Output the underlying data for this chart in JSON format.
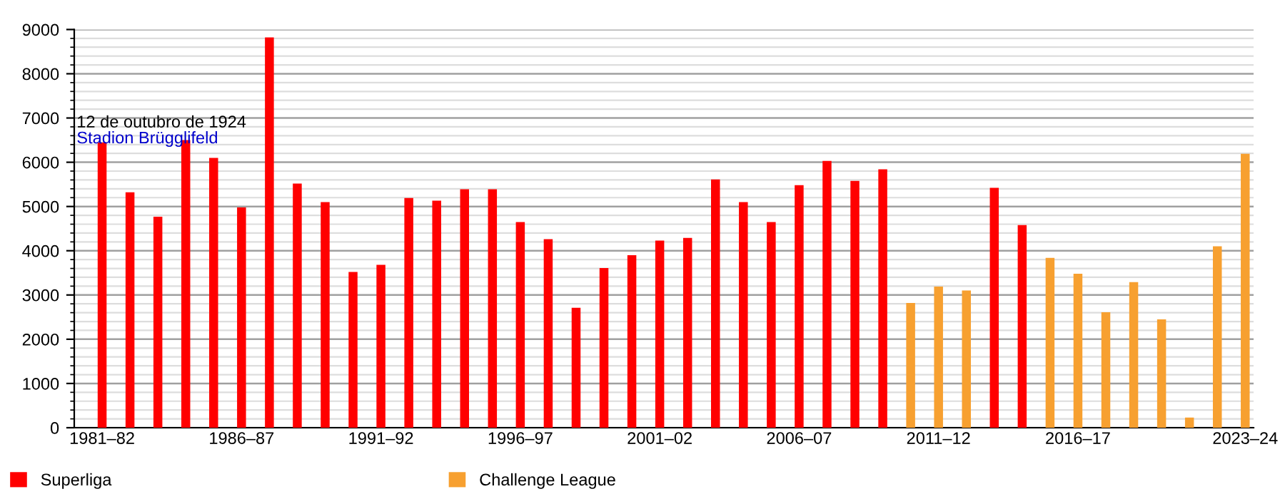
{
  "chart_data": {
    "type": "bar",
    "categories": [
      "1981–82",
      null,
      null,
      null,
      null,
      "1986–87",
      null,
      null,
      null,
      null,
      "1991–92",
      null,
      null,
      null,
      null,
      "1996–97",
      null,
      null,
      null,
      null,
      "2001–02",
      null,
      null,
      null,
      null,
      "2006–07",
      null,
      null,
      null,
      null,
      "2011–12",
      null,
      null,
      null,
      null,
      "2016–17",
      null,
      null,
      null,
      null,
      null,
      "2023–24"
    ],
    "series": [
      {
        "name": "Superliga",
        "color": "#ff0000",
        "values": [
          6450,
          5320,
          4770,
          6500,
          6100,
          4980,
          8820,
          5520,
          5100,
          3520,
          3680,
          5190,
          5130,
          5390,
          5390,
          4650,
          4260,
          2710,
          3610,
          3900,
          4230,
          4290,
          5610,
          5100,
          4650,
          5480,
          6030,
          5580,
          5840,
          null,
          null,
          null,
          5420,
          4580,
          null,
          null,
          null,
          null,
          null,
          null,
          null,
          null
        ]
      },
      {
        "name": "Challenge League",
        "color": "#f7a030",
        "values": [
          null,
          null,
          null,
          null,
          null,
          null,
          null,
          null,
          null,
          null,
          null,
          null,
          null,
          null,
          null,
          null,
          null,
          null,
          null,
          null,
          null,
          null,
          null,
          null,
          null,
          null,
          null,
          null,
          null,
          2820,
          3190,
          3100,
          null,
          null,
          3840,
          3480,
          2610,
          3290,
          2450,
          230,
          4100,
          6190
        ]
      }
    ],
    "ylim": [
      0,
      9000
    ],
    "yticks": [
      0,
      1000,
      2000,
      3000,
      4000,
      5000,
      6000,
      7000,
      8000,
      9000
    ],
    "grid": "y",
    "legend": "bottom left",
    "annotations": [
      "12 de outubro de 1924",
      "Stadion Brügglifeld"
    ]
  }
}
